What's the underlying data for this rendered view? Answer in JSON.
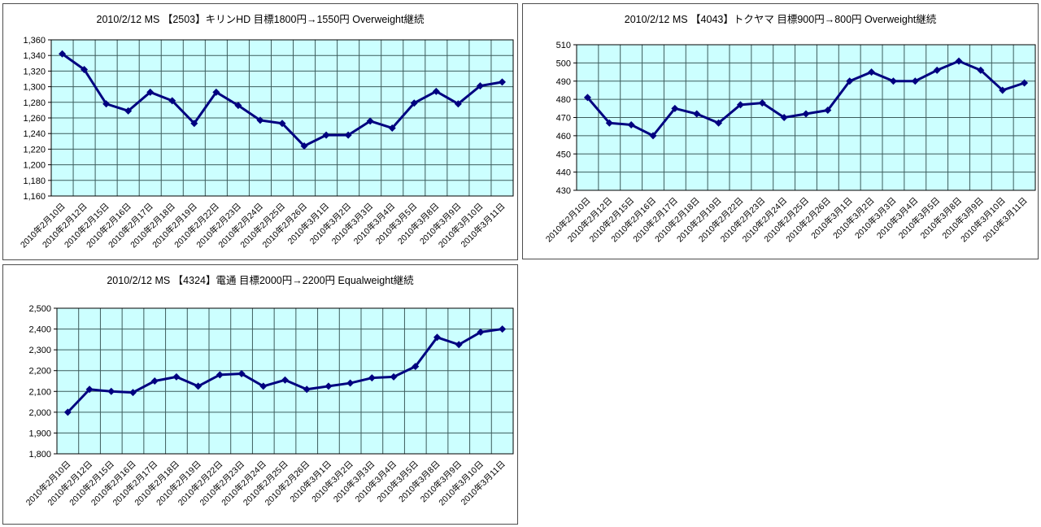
{
  "colors": {
    "plot_background": "#ccffff",
    "series_line": "#000080",
    "marker_fill": "#000080",
    "gridline": "#3d5c5c",
    "axis_line": "#000000",
    "label_text": "#000000",
    "panel_border": "#4d4d4d",
    "page_background": "#ffffff"
  },
  "chart_data": [
    {
      "type": "line",
      "title": "2010/2/12 MS 【2503】キリンHD 目標1800円→1550円 Overweight継続",
      "xlabel": "",
      "ylabel": "",
      "ylim": [
        1160,
        1360
      ],
      "ystep": 20,
      "grid": true,
      "legend": false,
      "categories": [
        "2010年2月10日",
        "2010年2月12日",
        "2010年2月15日",
        "2010年2月16日",
        "2010年2月17日",
        "2010年2月18日",
        "2010年2月19日",
        "2010年2月22日",
        "2010年2月23日",
        "2010年2月24日",
        "2010年2月25日",
        "2010年2月26日",
        "2010年3月1日",
        "2010年3月2日",
        "2010年3月3日",
        "2010年3月4日",
        "2010年3月5日",
        "2010年3月8日",
        "2010年3月9日",
        "2010年3月10日",
        "2010年3月11日"
      ],
      "values": [
        1342,
        1322,
        1278,
        1269,
        1293,
        1282,
        1253,
        1293,
        1276,
        1257,
        1253,
        1224,
        1238,
        1238,
        1256,
        1247,
        1279,
        1294,
        1278,
        1301,
        1306
      ]
    },
    {
      "type": "line",
      "title": "2010/2/12 MS 【4043】トクヤマ 目標900円→800円 Overweight継続",
      "xlabel": "",
      "ylabel": "",
      "ylim": [
        430,
        510
      ],
      "ystep": 10,
      "grid": true,
      "legend": false,
      "categories": [
        "2010年2月10日",
        "2010年2月12日",
        "2010年2月15日",
        "2010年2月16日",
        "2010年2月17日",
        "2010年2月18日",
        "2010年2月19日",
        "2010年2月22日",
        "2010年2月23日",
        "2010年2月24日",
        "2010年2月25日",
        "2010年2月26日",
        "2010年3月1日",
        "2010年3月2日",
        "2010年3月3日",
        "2010年3月4日",
        "2010年3月5日",
        "2010年3月8日",
        "2010年3月9日",
        "2010年3月10日",
        "2010年3月11日"
      ],
      "values": [
        481,
        467,
        466,
        460,
        475,
        472,
        467,
        477,
        478,
        470,
        472,
        474,
        490,
        495,
        490,
        490,
        496,
        501,
        496,
        485,
        489
      ]
    },
    {
      "type": "line",
      "title": "2010/2/12 MS 【4324】電通 目標2000円→2200円 Equalweight継続",
      "xlabel": "",
      "ylabel": "",
      "ylim": [
        1800,
        2500
      ],
      "ystep": 100,
      "grid": true,
      "legend": false,
      "categories": [
        "2010年2月10日",
        "2010年2月12日",
        "2010年2月15日",
        "2010年2月16日",
        "2010年2月17日",
        "2010年2月18日",
        "2010年2月19日",
        "2010年2月22日",
        "2010年2月23日",
        "2010年2月24日",
        "2010年2月25日",
        "2010年2月26日",
        "2010年3月1日",
        "2010年3月2日",
        "2010年3月3日",
        "2010年3月4日",
        "2010年3月5日",
        "2010年3月8日",
        "2010年3月9日",
        "2010年3月10日",
        "2010年3月11日"
      ],
      "values": [
        2000,
        2110,
        2100,
        2095,
        2150,
        2170,
        2125,
        2180,
        2185,
        2125,
        2155,
        2110,
        2125,
        2140,
        2165,
        2170,
        2220,
        2360,
        2325,
        2385,
        2400
      ]
    }
  ]
}
